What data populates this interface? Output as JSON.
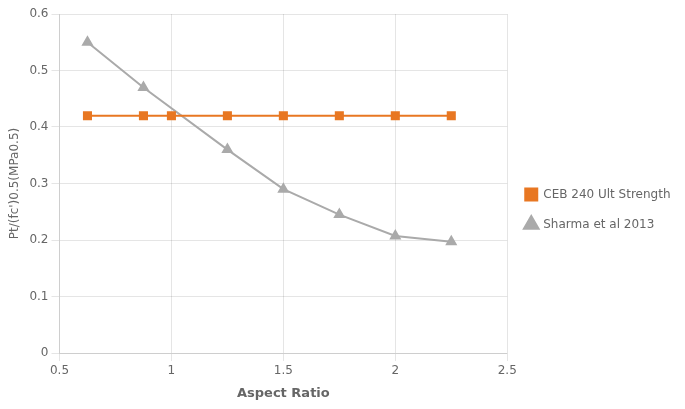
{
  "chart_data": {
    "type": "line",
    "xlabel": "Aspect Ratio",
    "ylabel": "Pt/(fc')0.5(MPa0.5)",
    "series": [
      {
        "name": "CEB 240 Ult Strength",
        "color": "#E87722",
        "marker": "square",
        "line_style": "solid",
        "x": [
          0.625,
          0.875,
          1.0,
          1.25,
          1.5,
          1.75,
          2.0,
          2.25
        ],
        "values": [
          0.42,
          0.42,
          0.42,
          0.42,
          0.42,
          0.42,
          0.42,
          0.42
        ]
      },
      {
        "name": "Sharma et al 2013",
        "color": "#AAAAAA",
        "marker": "triangle",
        "line_style": "solid",
        "x": [
          0.625,
          0.875,
          1.25,
          1.5,
          1.75,
          2.0,
          2.25
        ],
        "values": [
          0.55,
          0.47,
          0.36,
          0.29,
          0.245,
          0.207,
          0.197
        ]
      }
    ],
    "xlim": [
      0.5,
      2.5
    ],
    "xticks": [
      0.5,
      1,
      1.5,
      2,
      2.5
    ],
    "ylim": [
      0,
      0.6
    ],
    "yticks": [
      0,
      0.1,
      0.2,
      0.3,
      0.4,
      0.5,
      0.6
    ],
    "grid": true,
    "legend": "right"
  }
}
